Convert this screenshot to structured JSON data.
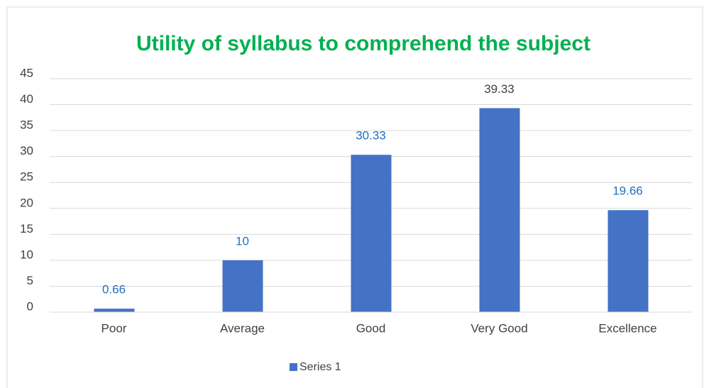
{
  "chart_data": {
    "type": "bar",
    "title": "Utility of syllabus to comprehend the subject",
    "categories": [
      "Poor",
      "Average",
      "Good",
      "Very Good",
      "Excellence"
    ],
    "series": [
      {
        "name": "Series 1",
        "color": "#4472c4",
        "values": [
          0.66,
          10,
          30.33,
          39.33,
          19.66
        ]
      }
    ],
    "label_colors": [
      "#1f6fbf",
      "#1f6fbf",
      "#1f6fbf",
      "#404040",
      "#1f6fbf"
    ],
    "title_color": "#00b050",
    "ylim": [
      0,
      45
    ],
    "yticks": [
      0,
      5,
      10,
      15,
      20,
      25,
      30,
      35,
      40,
      45
    ],
    "grid": true,
    "legend": "bottom"
  }
}
